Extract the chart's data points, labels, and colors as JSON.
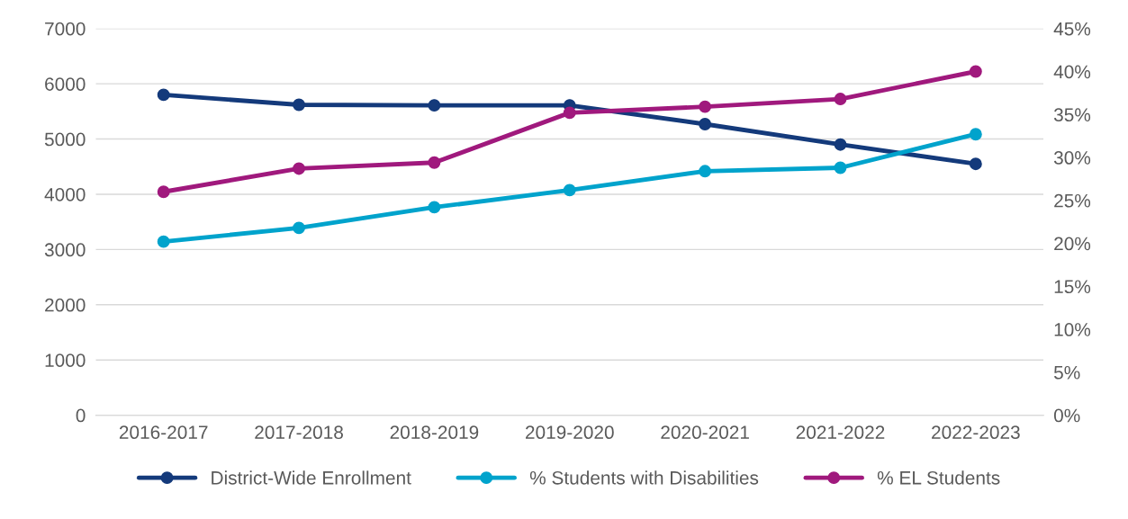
{
  "chart_data": {
    "type": "line",
    "categories": [
      "2016-2017",
      "2017-2018",
      "2018-2019",
      "2019-2020",
      "2020-2021",
      "2021-2022",
      "2022-2023"
    ],
    "series": [
      {
        "name": "District-Wide Enrollment",
        "color": "#143a7b",
        "values": [
          5800,
          5620,
          5610,
          5610,
          5270,
          4900,
          4550
        ]
      },
      {
        "name": "% Students with Disabilities",
        "color": "#00a3cc",
        "axis": "y2",
        "values": [
          20.2,
          21.8,
          24.2,
          26.2,
          28.4,
          28.8,
          32.7
        ]
      },
      {
        "name": "% EL Students",
        "color": "#a0197d",
        "axis": "y2",
        "values": [
          26.0,
          28.7,
          29.4,
          35.2,
          35.9,
          36.8,
          40.0
        ]
      }
    ],
    "ylim": [
      0,
      7000
    ],
    "yticks": [
      0,
      1000,
      2000,
      3000,
      4000,
      5000,
      6000,
      7000
    ],
    "y2lim": [
      0,
      45
    ],
    "y2ticks": [
      {
        "value": 0,
        "label": "0%"
      },
      {
        "value": 5,
        "label": "5%"
      },
      {
        "value": 10,
        "label": "10%"
      },
      {
        "value": 15,
        "label": "15%"
      },
      {
        "value": 20,
        "label": "20%"
      },
      {
        "value": 25,
        "label": "25%"
      },
      {
        "value": 30,
        "label": "30%"
      },
      {
        "value": 35,
        "label": "35%"
      },
      {
        "value": 40,
        "label": "40%"
      },
      {
        "value": 45,
        "label": "45%"
      }
    ],
    "grid": "y",
    "legend": "bottom",
    "marker": "circle",
    "line_style": "solid"
  }
}
